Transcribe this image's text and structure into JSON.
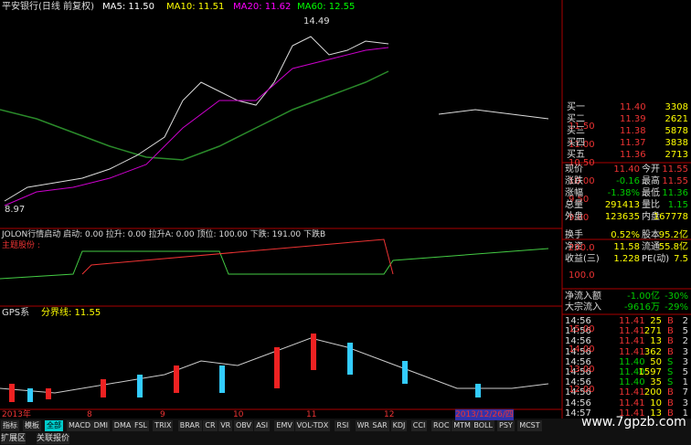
{
  "header": {
    "title": "平安银行(日线 前复权)",
    "ma5": "MA5: 11.50",
    "ma10": "MA10: 11.51",
    "ma20": "MA20: 11.62",
    "ma60": "MA60: 12.55",
    "high_note": "14.49",
    "low_note": "8.97"
  },
  "main_axis": [
    "11.50",
    "11.00",
    "10.50",
    "10.00",
    "9.50",
    "9.00"
  ],
  "order_book": [
    [
      "买一",
      "11.40",
      "3308"
    ],
    [
      "买二",
      "11.39",
      "2621"
    ],
    [
      "买三",
      "11.38",
      "5878"
    ],
    [
      "买四",
      "11.37",
      "3838"
    ],
    [
      "买五",
      "11.36",
      "2713"
    ]
  ],
  "quote": [
    [
      "现价",
      "11.40",
      "今开",
      "11.55"
    ],
    [
      "涨跌",
      "-0.16",
      "最高",
      "11.55"
    ],
    [
      "涨幅",
      "-1.38%",
      "最低",
      "11.36"
    ],
    [
      "总量",
      "291413",
      "量比",
      "1.15"
    ],
    [
      "外盘",
      "123635",
      "内盘",
      "167778"
    ]
  ],
  "finance": [
    [
      "换手",
      "0.52%",
      "股本",
      "95.2亿"
    ],
    [
      "净资",
      "11.58",
      "流通",
      "55.8亿"
    ],
    [
      "收益(三)",
      "1.228",
      "PE(动)",
      "7.5"
    ]
  ],
  "flow": [
    [
      "净流入额",
      "-1.00亿",
      "-30%"
    ],
    [
      "大宗流入",
      "-9616万",
      "-29%"
    ]
  ],
  "ticks": [
    [
      "14:56",
      "11.41",
      "25",
      "B",
      "2"
    ],
    [
      "14:56",
      "11.41",
      "271",
      "B",
      "5"
    ],
    [
      "14:56",
      "11.41",
      "13",
      "B",
      "2"
    ],
    [
      "14:56",
      "11.41",
      "362",
      "B",
      "3"
    ],
    [
      "14:56",
      "11.40",
      "50",
      "S",
      "3"
    ],
    [
      "14:56",
      "11.40",
      "1597",
      "S",
      "5"
    ],
    [
      "14:56",
      "11.40",
      "35",
      "S",
      "1"
    ],
    [
      "14:56",
      "11.41",
      "200",
      "B",
      "7"
    ],
    [
      "14:56",
      "11.41",
      "10",
      "B",
      "3"
    ],
    [
      "14:57",
      "11.41",
      "13",
      "B",
      "1"
    ]
  ],
  "indicator": {
    "title": "JOLON行情启动 启动: 0.00 拉升: 0.00 拉升A: 0.00 顶位: 100.00 下跌: 191.00 下跌B",
    "subtitle": "主题股份 :",
    "axis": [
      "200.0",
      "100.0"
    ]
  },
  "gps": {
    "title": "GPS系",
    "line": "分界线: 11.55",
    "axis": [
      "15.00",
      "14.00",
      "13.00",
      "12.00"
    ]
  },
  "dates": [
    "2013年",
    "8",
    "9",
    "10",
    "11",
    "12",
    "2013/12/26/四"
  ],
  "tabs": [
    "指标",
    "模板",
    "全部",
    "MACD",
    "DMI",
    "DMA",
    "FSL",
    "TRIX",
    "BRAR",
    "CR",
    "VR",
    "OBV",
    "ASI",
    "EMV",
    "VOL-TDX",
    "RSI",
    "WR",
    "SAR",
    "KDJ",
    "CCI",
    "ROC",
    "MTM",
    "BOLL",
    "PSY",
    "MCST"
  ],
  "bottom_tabs": [
    "扩展区",
    "关联报价"
  ],
  "watermark": "www.7gpzb.com"
}
